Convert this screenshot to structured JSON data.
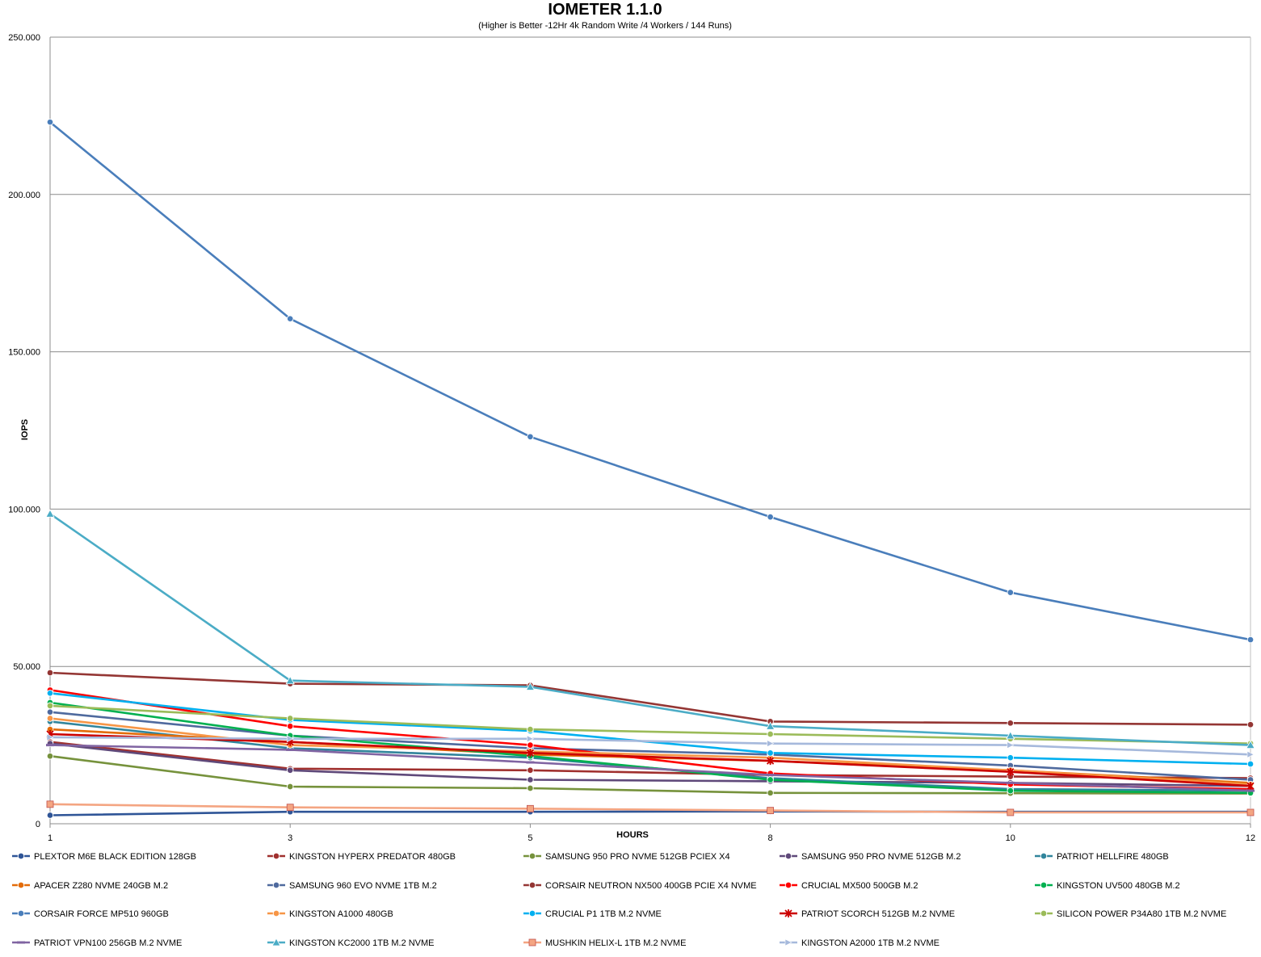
{
  "chart_data": {
    "type": "line",
    "title": "IOMETER 1.1.0",
    "subtitle": "(Higher is Better -12Hr 4k Random Write /4 Workers / 144 Runs)",
    "xlabel": "HOURS",
    "ylabel": "IOPS",
    "categories": [
      "1",
      "3",
      "5",
      "8",
      "10",
      "12"
    ],
    "ylim": [
      0,
      250000
    ],
    "ytick_values": [
      0,
      50000,
      100000,
      150000,
      200000,
      250000
    ],
    "ytick_labels": [
      "0",
      "50.000",
      "100.000",
      "150.000",
      "200.000",
      "250.000"
    ],
    "grid": "horizontal",
    "legend_position": "bottom",
    "series": [
      {
        "name": "PLEXTOR M6E BLACK EDITION 128GB",
        "color": "#2F5597",
        "marker": "circle",
        "values": [
          2700,
          3800,
          3800,
          3900,
          3800,
          3800
        ]
      },
      {
        "name": "KINGSTON HYPERX PREDATOR 480GB",
        "color": "#A0302E",
        "marker": "circle",
        "values": [
          26000,
          17500,
          17000,
          15500,
          15000,
          14500
        ]
      },
      {
        "name": "SAMSUNG 950 PRO NVME 512GB PCIEX X4",
        "color": "#76923C",
        "marker": "circle",
        "values": [
          21500,
          11800,
          11300,
          9800,
          9700,
          9600
        ]
      },
      {
        "name": "SAMSUNG 950 PRO NVME 512GB M.2",
        "color": "#5F497A",
        "marker": "circle",
        "values": [
          25500,
          17000,
          14000,
          13500,
          13000,
          12000
        ]
      },
      {
        "name": "PATRIOT HELLFIRE 480GB",
        "color": "#31859C",
        "marker": "circle",
        "values": [
          32500,
          24000,
          21000,
          14500,
          11000,
          10500
        ]
      },
      {
        "name": "APACER Z280 NVME 240GB M.2",
        "color": "#E36C09",
        "marker": "circle",
        "values": [
          30000,
          26000,
          22000,
          20000,
          17000,
          13000
        ]
      },
      {
        "name": "SAMSUNG 960 EVO NVME 1TB M.2",
        "color": "#4F6A9E",
        "marker": "circle",
        "values": [
          35500,
          28000,
          24000,
          22000,
          18500,
          14000
        ]
      },
      {
        "name": "CORSAIR NEUTRON NX500 400GB PCIE X4 NVME",
        "color": "#943634",
        "marker": "circle",
        "values": [
          48000,
          44500,
          44000,
          32500,
          32000,
          31500
        ]
      },
      {
        "name": "CRUCIAL MX500 500GB M.2",
        "color": "#FF0000",
        "marker": "circle",
        "values": [
          42500,
          31000,
          25000,
          16000,
          12500,
          11000
        ]
      },
      {
        "name": "KINGSTON UV500 480GB M.2",
        "color": "#00B050",
        "marker": "circle",
        "values": [
          38500,
          28000,
          21500,
          14000,
          10500,
          9800
        ]
      },
      {
        "name": "CORSAIR FORCE MP510 960GB",
        "color": "#4A7EBB",
        "marker": "circle",
        "values": [
          223000,
          160500,
          123000,
          97500,
          73500,
          58500
        ]
      },
      {
        "name": "KINGSTON A1000 480GB",
        "color": "#F79646",
        "marker": "circle",
        "values": [
          33500,
          25000,
          23000,
          21000,
          17000,
          12500
        ]
      },
      {
        "name": "CRUCIAL P1 1TB M.2 NVME",
        "color": "#00B0F0",
        "marker": "circle",
        "values": [
          41500,
          33000,
          29500,
          22500,
          21000,
          19000
        ]
      },
      {
        "name": "PATRIOT SCORCH 512GB M.2 NVME",
        "color": "#CC0000",
        "marker": "star",
        "values": [
          28500,
          26000,
          22500,
          20000,
          16500,
          12000
        ]
      },
      {
        "name": "SILICON POWER P34A80 1TB M.2 NVME",
        "color": "#9BBB59",
        "marker": "circle",
        "values": [
          37500,
          33500,
          30000,
          28500,
          27000,
          25500
        ]
      },
      {
        "name": "PATRIOT VPN100 256GB M.2 NVME",
        "color": "#8064A2",
        "marker": "dash",
        "values": [
          25000,
          23500,
          19500,
          15500,
          13000,
          10500
        ]
      },
      {
        "name": "KINGSTON KC2000 1TB M.2 NVME",
        "color": "#4BACC6",
        "marker": "triangle",
        "values": [
          98500,
          45500,
          43500,
          31000,
          28000,
          25000
        ]
      },
      {
        "name": "MUSHKIN HELIX-L 1TB M.2 NVME",
        "color": "#F4A582",
        "marker": "square",
        "values": [
          6200,
          5200,
          4800,
          4200,
          3600,
          3600
        ]
      },
      {
        "name": "KINGSTON A2000 1TB M.2 NVME",
        "color": "#A6B9DC",
        "marker": "arrow",
        "values": [
          27500,
          27000,
          27000,
          25500,
          25000,
          22000
        ]
      }
    ]
  }
}
